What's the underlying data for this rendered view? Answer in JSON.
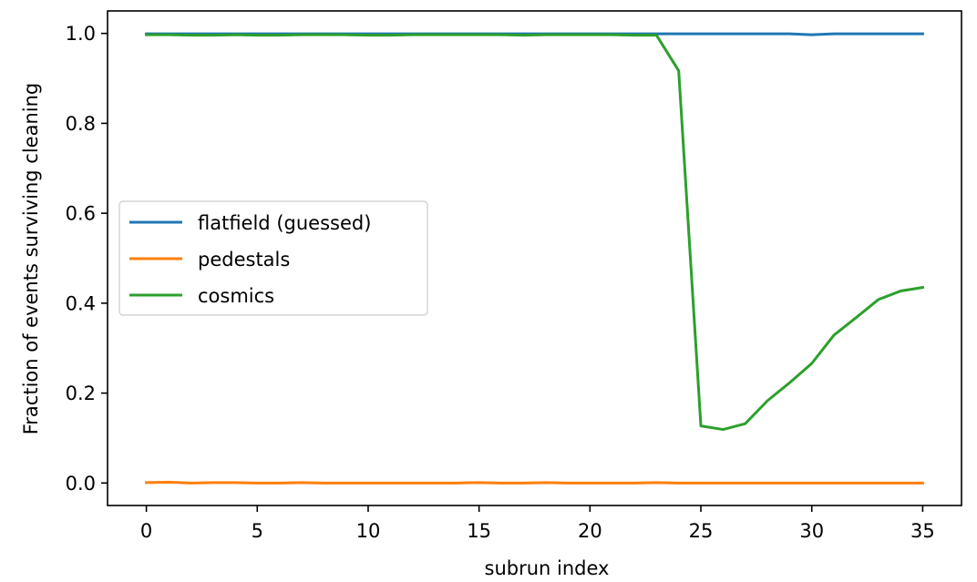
{
  "chart_data": {
    "type": "line",
    "xlabel": "subrun index",
    "ylabel": "Fraction of events surviving cleaning",
    "xlim": [
      -1.75,
      36.75
    ],
    "ylim": [
      -0.05,
      1.05
    ],
    "x_ticks": [
      0,
      5,
      10,
      15,
      20,
      25,
      30,
      35
    ],
    "x_tick_labels": [
      "0",
      "5",
      "10",
      "15",
      "20",
      "25",
      "30",
      "35"
    ],
    "y_ticks": [
      0.0,
      0.2,
      0.4,
      0.6,
      0.8,
      1.0
    ],
    "y_tick_labels": [
      "0.0",
      "0.2",
      "0.4",
      "0.6",
      "0.8",
      "1.0"
    ],
    "grid": false,
    "legend_position": "center-left",
    "x": [
      0,
      1,
      2,
      3,
      4,
      5,
      6,
      7,
      8,
      9,
      10,
      11,
      12,
      13,
      14,
      15,
      16,
      17,
      18,
      19,
      20,
      21,
      22,
      23,
      24,
      25,
      26,
      27,
      28,
      29,
      30,
      31,
      32,
      33,
      34,
      35
    ],
    "series": [
      {
        "name": "flatfield (guessed)",
        "color": "#1f77b4",
        "values": [
          0.999,
          0.999,
          0.999,
          0.999,
          0.999,
          0.999,
          0.999,
          0.999,
          0.999,
          0.999,
          0.999,
          0.999,
          0.999,
          0.999,
          0.999,
          0.999,
          0.999,
          0.999,
          0.999,
          0.999,
          0.999,
          0.999,
          0.999,
          0.999,
          0.999,
          0.999,
          0.999,
          0.999,
          0.999,
          0.999,
          0.997,
          0.999,
          0.999,
          0.999,
          0.999,
          0.999
        ]
      },
      {
        "name": "pedestals",
        "color": "#ff7f0e",
        "values": [
          0.001,
          0.002,
          0.0,
          0.001,
          0.001,
          0.0,
          0.0,
          0.001,
          0.0,
          0.0,
          0.0,
          0.0,
          0.0,
          0.0,
          0.0,
          0.001,
          0.0,
          0.0,
          0.001,
          0.0,
          0.0,
          0.0,
          0.0,
          0.001,
          0.0,
          0.0,
          0.0,
          0.0,
          0.0,
          0.0,
          0.0,
          0.0,
          0.0,
          0.0,
          0.0,
          0.0
        ]
      },
      {
        "name": "cosmics",
        "color": "#2ca02c",
        "values": [
          0.997,
          0.997,
          0.996,
          0.996,
          0.997,
          0.996,
          0.996,
          0.997,
          0.997,
          0.997,
          0.996,
          0.996,
          0.997,
          0.997,
          0.997,
          0.997,
          0.997,
          0.996,
          0.997,
          0.997,
          0.997,
          0.997,
          0.996,
          0.996,
          0.917,
          0.127,
          0.119,
          0.132,
          0.183,
          0.223,
          0.266,
          0.329,
          0.368,
          0.408,
          0.427,
          0.435
        ]
      }
    ]
  }
}
